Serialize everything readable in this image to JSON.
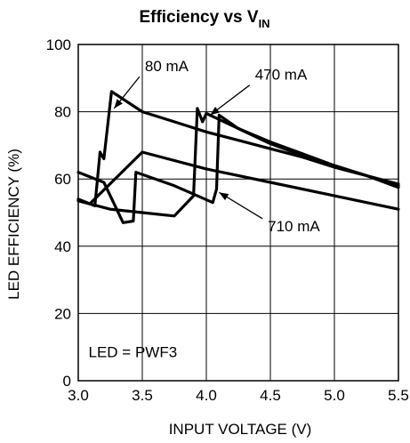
{
  "chart_data": {
    "type": "line",
    "title": "Efficiency vs V",
    "title_subscript": "IN",
    "xlabel": "INPUT VOLTAGE (V)",
    "ylabel": "LED EFFICIENCY (%)",
    "xlim": [
      3.0,
      5.5
    ],
    "ylim": [
      0,
      100
    ],
    "xticks": [
      "3.0",
      "3.5",
      "4.0",
      "4.5",
      "5.0",
      "5.5"
    ],
    "yticks": [
      "0",
      "20",
      "40",
      "60",
      "80",
      "100"
    ],
    "grid": true,
    "series": [
      {
        "name": "80 mA",
        "x": [
          3.0,
          3.13,
          3.17,
          3.2,
          3.26,
          3.5,
          3.75,
          4.0,
          4.25,
          4.5,
          4.75,
          5.0,
          5.25,
          5.5
        ],
        "y": [
          54,
          52,
          68,
          66,
          86,
          80,
          77,
          74,
          71.5,
          69,
          66.5,
          63.5,
          61,
          58.5
        ]
      },
      {
        "name": "470 mA",
        "x": [
          3.0,
          3.25,
          3.5,
          3.75,
          3.9,
          3.93,
          3.97,
          4.0,
          4.25,
          4.5,
          4.75,
          5.0,
          5.25,
          5.5
        ],
        "y": [
          53.5,
          51,
          50,
          49,
          55,
          81,
          77,
          79.5,
          75,
          70.5,
          67,
          64,
          61,
          58
        ]
      },
      {
        "name": "710 mA",
        "x": [
          3.0,
          3.2,
          3.35,
          3.43,
          3.45,
          3.75,
          3.9,
          4.05,
          4.08,
          4.1,
          4.25,
          4.5,
          4.75,
          5.0,
          5.25,
          5.5
        ],
        "y": [
          62,
          59,
          47,
          47.5,
          62,
          58,
          55.5,
          53,
          57,
          79,
          75,
          71,
          67.5,
          64,
          61,
          57.5
        ]
      },
      {
        "name": "",
        "x": [
          3.1,
          3.5,
          4.0,
          4.5,
          5.0,
          5.5
        ],
        "y": [
          53,
          68,
          63,
          59,
          55,
          51
        ]
      }
    ],
    "annotations": [
      {
        "text": "80 mA",
        "x": 3.52,
        "y": 92,
        "arrow_to": [
          3.28,
          81
        ]
      },
      {
        "text": "470 mA",
        "x": 4.38,
        "y": 89.5,
        "arrow_to": [
          4.03,
          79
        ]
      },
      {
        "text": "710 mA",
        "x": 4.48,
        "y": 44.5,
        "arrow_to": [
          4.1,
          56
        ]
      },
      {
        "text": "LED = PWF3",
        "x": 3.08,
        "y": 7,
        "arrow_to": null
      }
    ]
  }
}
